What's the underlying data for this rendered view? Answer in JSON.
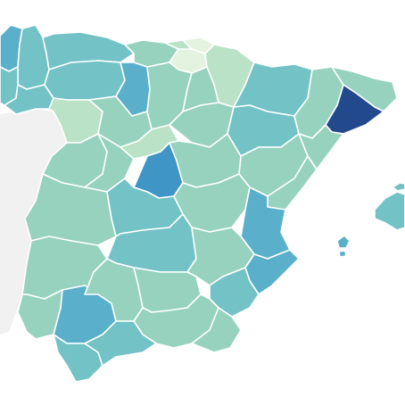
{
  "map": {
    "colors": {
      "sea": "#ffffff",
      "outside": "#f1f1f1",
      "border": "#ffffff"
    },
    "scale": {
      "very_light": "#e3f3df",
      "light": "#b9e2c6",
      "mint": "#96d2be",
      "teal": "#72c2c6",
      "medium": "#5ab0cb",
      "blue": "#3f95c5",
      "dark": "#22498c"
    },
    "regions": [
      {
        "id": "a-coruna",
        "level": "medium"
      },
      {
        "id": "lugo",
        "level": "teal"
      },
      {
        "id": "pontevedra",
        "level": "teal"
      },
      {
        "id": "ourense",
        "level": "teal"
      },
      {
        "id": "asturias",
        "level": "teal"
      },
      {
        "id": "cantabria",
        "level": "mint"
      },
      {
        "id": "bizkaia",
        "level": "light"
      },
      {
        "id": "gipuzkoa",
        "level": "very_light"
      },
      {
        "id": "araba",
        "level": "very_light"
      },
      {
        "id": "navarra",
        "level": "light"
      },
      {
        "id": "leon",
        "level": "teal"
      },
      {
        "id": "palencia",
        "level": "medium"
      },
      {
        "id": "burgos",
        "level": "mint"
      },
      {
        "id": "la-rioja",
        "level": "mint"
      },
      {
        "id": "zamora",
        "level": "light"
      },
      {
        "id": "valladolid",
        "level": "mint"
      },
      {
        "id": "soria",
        "level": "mint"
      },
      {
        "id": "huesca",
        "level": "teal"
      },
      {
        "id": "lleida",
        "level": "mint"
      },
      {
        "id": "girona",
        "level": "mint"
      },
      {
        "id": "barcelona",
        "level": "dark"
      },
      {
        "id": "tarragona",
        "level": "mint"
      },
      {
        "id": "zaragoza",
        "level": "teal"
      },
      {
        "id": "teruel",
        "level": "mint"
      },
      {
        "id": "salamanca",
        "level": "mint"
      },
      {
        "id": "avila",
        "level": "mint"
      },
      {
        "id": "segovia",
        "level": "light"
      },
      {
        "id": "guadalajara",
        "level": "mint"
      },
      {
        "id": "madrid",
        "level": "blue"
      },
      {
        "id": "caceres",
        "level": "mint"
      },
      {
        "id": "toledo",
        "level": "teal"
      },
      {
        "id": "cuenca",
        "level": "mint"
      },
      {
        "id": "castellon",
        "level": "mint"
      },
      {
        "id": "valencia",
        "level": "medium"
      },
      {
        "id": "badajoz",
        "level": "mint"
      },
      {
        "id": "ciudad-real",
        "level": "teal"
      },
      {
        "id": "albacete",
        "level": "mint"
      },
      {
        "id": "alicante",
        "level": "medium"
      },
      {
        "id": "murcia",
        "level": "teal"
      },
      {
        "id": "huelva",
        "level": "mint"
      },
      {
        "id": "sevilla",
        "level": "medium"
      },
      {
        "id": "cordoba",
        "level": "mint"
      },
      {
        "id": "jaen",
        "level": "mint"
      },
      {
        "id": "granada",
        "level": "mint"
      },
      {
        "id": "almeria",
        "level": "mint"
      },
      {
        "id": "cadiz",
        "level": "teal"
      },
      {
        "id": "malaga",
        "level": "teal"
      },
      {
        "id": "mallorca",
        "level": "teal"
      },
      {
        "id": "menorca",
        "level": "teal"
      },
      {
        "id": "ibiza",
        "level": "medium"
      },
      {
        "id": "formentera",
        "level": "medium"
      }
    ]
  }
}
